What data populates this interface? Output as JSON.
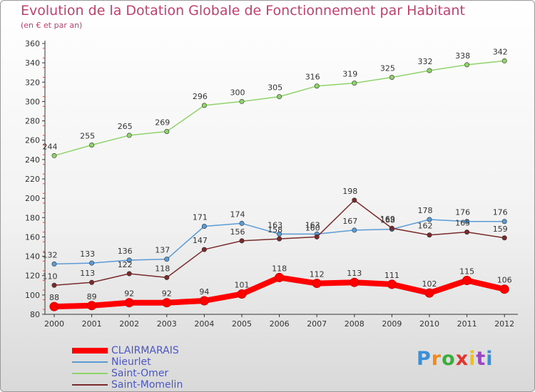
{
  "chart_data": {
    "type": "line",
    "title": "Evolution de la Dotation Globale de Fonctionnement par Habitant",
    "subtitle": "(en € et par an)",
    "x": [
      "2000",
      "2001",
      "2002",
      "2003",
      "2004",
      "2005",
      "2006",
      "2007",
      "2008",
      "2009",
      "2010",
      "2011",
      "2012"
    ],
    "ylim": [
      80,
      360
    ],
    "yticks": [
      80,
      100,
      120,
      140,
      160,
      180,
      200,
      220,
      240,
      260,
      280,
      300,
      320,
      340,
      360
    ],
    "grid": false,
    "legend_position": "bottom-left",
    "series": [
      {
        "name": "CLAIRMARAIS",
        "color": "#ff0000",
        "values": [
          88,
          89,
          92,
          92,
          94,
          101,
          118,
          112,
          113,
          111,
          102,
          115,
          106
        ]
      },
      {
        "name": "Nieurlet",
        "color": "#5b9bd5",
        "values": [
          132,
          133,
          136,
          137,
          171,
          174,
          163,
          163,
          167,
          168,
          178,
          176,
          176
        ]
      },
      {
        "name": "Saint-Omer",
        "color": "#8fd46a",
        "values": [
          244,
          255,
          265,
          269,
          296,
          300,
          305,
          316,
          319,
          325,
          332,
          338,
          342
        ]
      },
      {
        "name": "Saint-Momelin",
        "color": "#7a2a2a",
        "values": [
          110,
          113,
          122,
          118,
          147,
          156,
          158,
          160,
          198,
          169,
          162,
          165,
          159
        ]
      }
    ]
  },
  "logo": {
    "text": "Proxiti"
  }
}
